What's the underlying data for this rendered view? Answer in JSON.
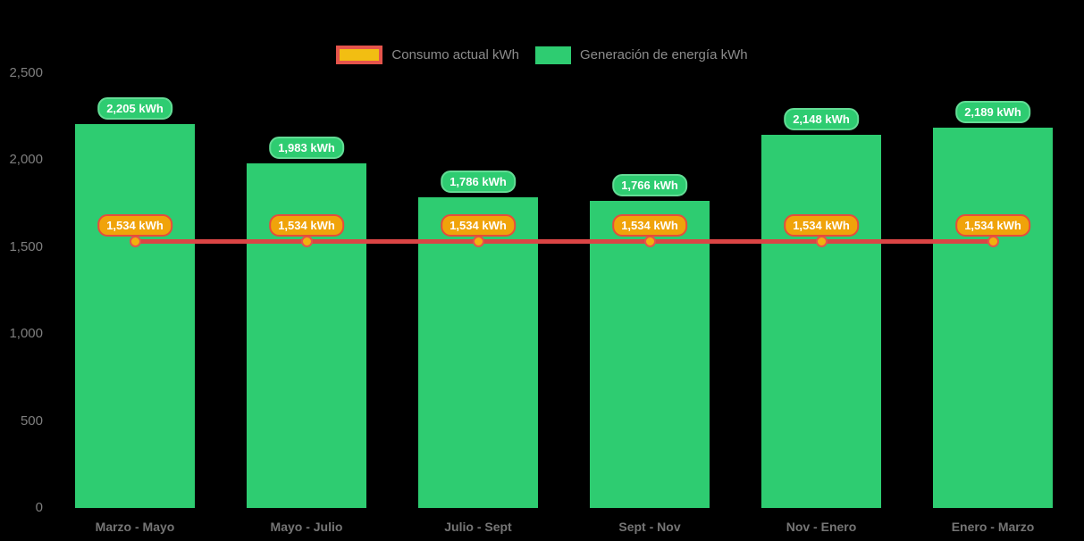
{
  "canvas": {
    "background": "#000000"
  },
  "legend": {
    "items": [
      {
        "label": "Consumo actual kWh",
        "swatch_fill": "#F2BE12",
        "swatch_border": "#E5544B"
      },
      {
        "label": "Generación de energía kWh",
        "swatch_fill": "#2ECC71",
        "swatch_border": "#2ECC71"
      }
    ],
    "text_color": "#8C8C8C"
  },
  "axes": {
    "y": {
      "tick_labels": [
        "2,500",
        "2,000",
        "1,500",
        "1,000",
        "500",
        "0"
      ],
      "tick_values": [
        2500,
        2000,
        1500,
        1000,
        500,
        0
      ],
      "color": "#7F7F7F"
    },
    "x": {
      "labels": [
        "Marzo - Mayo",
        "Mayo - Julio",
        "Julio - Sept",
        "Sept - Nov",
        "Nov - Enero",
        "Enero - Marzo"
      ],
      "color": "#757575"
    }
  },
  "chart_data": {
    "type": "bar",
    "title": "",
    "xlabel": "",
    "ylabel": "",
    "categories": [
      "Marzo - Mayo",
      "Mayo - Julio",
      "Julio - Sept",
      "Sept - Nov",
      "Nov - Enero",
      "Enero - Marzo"
    ],
    "series": [
      {
        "name": "Generación de energía kWh",
        "type": "bar",
        "color": "#2ECC71",
        "values": [
          2205,
          1983,
          1786,
          1766,
          2148,
          2189
        ],
        "labels": [
          "2,205 kWh",
          "1,983 kWh",
          "1,786 kWh",
          "1,766 kWh",
          "2,148 kWh",
          "2,189 kWh"
        ]
      },
      {
        "name": "Consumo actual kWh",
        "type": "line",
        "color": "#DB4545",
        "marker_fill": "#F2B10E",
        "marker_border": "#E5544B",
        "values": [
          1534,
          1534,
          1534,
          1534,
          1534,
          1534
        ],
        "labels": [
          "1,534 kWh",
          "1,534 kWh",
          "1,534 kWh",
          "1,534 kWh",
          "1,534 kWh",
          "1,534 kWh"
        ]
      }
    ],
    "ylim": [
      0,
      2500
    ],
    "yticks": [
      0,
      500,
      1000,
      1500,
      2000,
      2500
    ],
    "grid": "hidden",
    "legend_position": "top"
  }
}
